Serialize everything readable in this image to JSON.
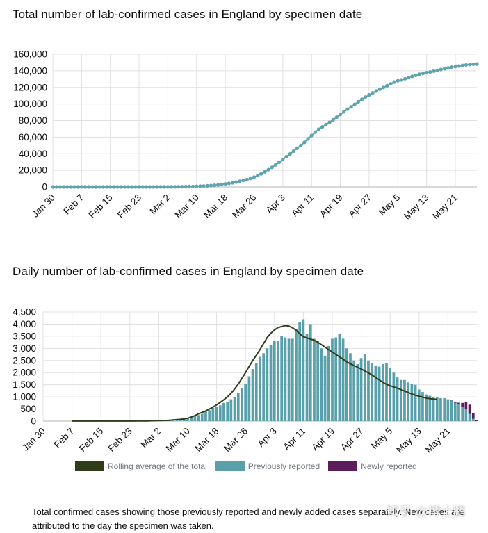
{
  "colors": {
    "cumulative": "#5ea3ad",
    "previous": "#5aa0ab",
    "newly": "#5b1c5c",
    "rolling": "#2e3c17",
    "grid": "#e0e0e0"
  },
  "chart1_title": "Total number of lab-confirmed cases in England by specimen date",
  "chart2_title": "Daily number of lab-confirmed cases in England by specimen date",
  "legend": {
    "rolling": "Rolling average of the total",
    "previous": "Previously reported",
    "newly": "Newly reported"
  },
  "footnote": "Total confirmed cases showing those previously reported and newly added cases separately. New cases are attributed to the day the specimen was taken.",
  "watermark": "知乎 @博士鹏",
  "chart_data": [
    {
      "type": "line",
      "x_tick_labels": [
        "Jan 30",
        "Feb 7",
        "Feb 15",
        "Feb 23",
        "Mar 2",
        "Mar 10",
        "Mar 18",
        "Mar 26",
        "Apr 3",
        "Apr 11",
        "Apr 19",
        "Apr 27",
        "May 5",
        "May 13",
        "May 21"
      ],
      "x_range": [
        "Jan 30",
        "May 22"
      ],
      "ylim": [
        0,
        160000
      ],
      "y_ticks": [
        0,
        20000,
        40000,
        60000,
        80000,
        100000,
        120000,
        140000,
        160000
      ],
      "y_tick_labels": [
        "0",
        "20,000",
        "40,000",
        "60,000",
        "80,000",
        "100,000",
        "120,000",
        "140,000",
        "160,000"
      ],
      "grid": true,
      "series": [
        {
          "values": [
            2,
            2,
            2,
            2,
            2,
            2,
            2,
            2,
            3,
            3,
            5,
            8,
            9,
            9,
            9,
            9,
            9,
            9,
            9,
            9,
            9,
            9,
            9,
            9,
            10,
            12,
            14,
            18,
            25,
            38,
            55,
            70,
            95,
            120,
            160,
            220,
            290,
            380,
            480,
            590,
            720,
            890,
            1100,
            1350,
            1650,
            2050,
            2500,
            3050,
            3650,
            4300,
            5050,
            5850,
            6750,
            7750,
            8900,
            10250,
            11800,
            13650,
            15800,
            18200,
            20850,
            23650,
            26650,
            29800,
            33100,
            36400,
            39700,
            43200,
            46600,
            50000,
            53800,
            57900,
            62000,
            65900,
            69600,
            72400,
            75100,
            77900,
            80900,
            84100,
            87300,
            90600,
            93700,
            96600,
            99600,
            102600,
            105600,
            108300,
            110900,
            113400,
            115700,
            117900,
            120000,
            122000,
            124200,
            126400,
            128000,
            129000,
            130400,
            131900,
            133300,
            134500,
            135800,
            136800,
            137700,
            138600,
            139600,
            140600,
            141600,
            142600,
            143500,
            144300,
            145100,
            145800,
            146500,
            147100,
            147600,
            148000,
            148200
          ]
        }
      ]
    },
    {
      "type": "bar",
      "x_tick_labels": [
        "Jan 30",
        "Feb 7",
        "Feb 15",
        "Feb 23",
        "Mar 2",
        "Mar 10",
        "Mar 18",
        "Mar 26",
        "Apr 3",
        "Apr 11",
        "Apr 19",
        "Apr 27",
        "May 5",
        "May 13",
        "May 21"
      ],
      "x_range": [
        "Jan 30",
        "May 22"
      ],
      "ylim": [
        0,
        4500
      ],
      "y_ticks": [
        0,
        500,
        1000,
        1500,
        2000,
        2500,
        3000,
        3500,
        4000,
        4500
      ],
      "y_tick_labels": [
        "0",
        "500",
        "1,000",
        "1,500",
        "2,000",
        "2,500",
        "3,000",
        "3,500",
        "4,000",
        "4,500"
      ],
      "grid": true,
      "series": [
        {
          "name": "Previously reported",
          "values": [
            0,
            0,
            0,
            0,
            0,
            0,
            0,
            0,
            1,
            0,
            2,
            3,
            1,
            0,
            0,
            0,
            0,
            0,
            0,
            0,
            0,
            0,
            0,
            0,
            1,
            2,
            2,
            4,
            7,
            13,
            17,
            15,
            25,
            25,
            40,
            60,
            70,
            90,
            100,
            110,
            130,
            170,
            210,
            250,
            300,
            400,
            450,
            550,
            600,
            650,
            750,
            800,
            900,
            1000,
            1150,
            1350,
            1550,
            1850,
            2150,
            2400,
            2650,
            2800,
            3000,
            3150,
            3300,
            3300,
            3500,
            3450,
            3400,
            3400,
            3800,
            4100,
            4200,
            3600,
            4000,
            3400,
            3300,
            3000,
            2700,
            3100,
            3400,
            3450,
            3600,
            3400,
            3000,
            2800,
            2500,
            2350,
            2600,
            2750,
            2500,
            2400,
            2300,
            2250,
            2350,
            2400,
            2200,
            2000,
            1800,
            1700,
            1700,
            1600,
            1550,
            1500,
            1300,
            1200,
            1100,
            1050,
            1000,
            1000,
            950,
            950,
            900,
            850,
            750,
            700,
            600,
            500,
            300,
            100,
            0
          ],
          "note": "bar heights estimated"
        },
        {
          "name": "Newly reported",
          "values": [
            0,
            0,
            0,
            0,
            0,
            0,
            0,
            0,
            0,
            0,
            0,
            0,
            0,
            0,
            0,
            0,
            0,
            0,
            0,
            0,
            0,
            0,
            0,
            0,
            0,
            0,
            0,
            0,
            0,
            0,
            0,
            0,
            0,
            0,
            0,
            0,
            0,
            0,
            0,
            0,
            0,
            0,
            0,
            0,
            0,
            0,
            0,
            0,
            0,
            0,
            0,
            0,
            0,
            0,
            0,
            0,
            0,
            0,
            0,
            0,
            0,
            0,
            0,
            0,
            0,
            0,
            0,
            0,
            0,
            0,
            0,
            0,
            0,
            0,
            0,
            0,
            0,
            0,
            0,
            0,
            0,
            0,
            0,
            0,
            0,
            0,
            0,
            0,
            0,
            0,
            0,
            0,
            0,
            0,
            0,
            0,
            0,
            0,
            0,
            0,
            0,
            0,
            0,
            0,
            0,
            0,
            0,
            0,
            0,
            0,
            0,
            0,
            0,
            20,
            30,
            60,
            150,
            300,
            380,
            220,
            40
          ]
        },
        {
          "name": "Rolling average of the total",
          "type": "line",
          "values": [
            null,
            null,
            null,
            null,
            null,
            null,
            null,
            null,
            3,
            3,
            3,
            3,
            3,
            3,
            3,
            3,
            3,
            3,
            3,
            3,
            3,
            3,
            3,
            3,
            3,
            4,
            5,
            6,
            8,
            10,
            13,
            16,
            20,
            25,
            30,
            38,
            48,
            60,
            75,
            95,
            120,
            170,
            230,
            300,
            360,
            420,
            500,
            580,
            670,
            770,
            880,
            1000,
            1150,
            1330,
            1530,
            1760,
            2000,
            2260,
            2500,
            2720,
            2950,
            3200,
            3450,
            3620,
            3760,
            3860,
            3900,
            3940,
            3920,
            3850,
            3750,
            3600,
            3480,
            3430,
            3380,
            3340,
            3250,
            3150,
            3050,
            2950,
            2850,
            2750,
            2650,
            2550,
            2450,
            2360,
            2290,
            2220,
            2150,
            2070,
            1990,
            1900,
            1800,
            1700,
            1600,
            1520,
            1460,
            1410,
            1360,
            1300,
            1240,
            1180,
            1120,
            1070,
            1030,
            990,
            950,
            930,
            910,
            900,
            null,
            null,
            null,
            null,
            null,
            null,
            null,
            null,
            null,
            null,
            null,
            null,
            null
          ]
        }
      ]
    }
  ]
}
